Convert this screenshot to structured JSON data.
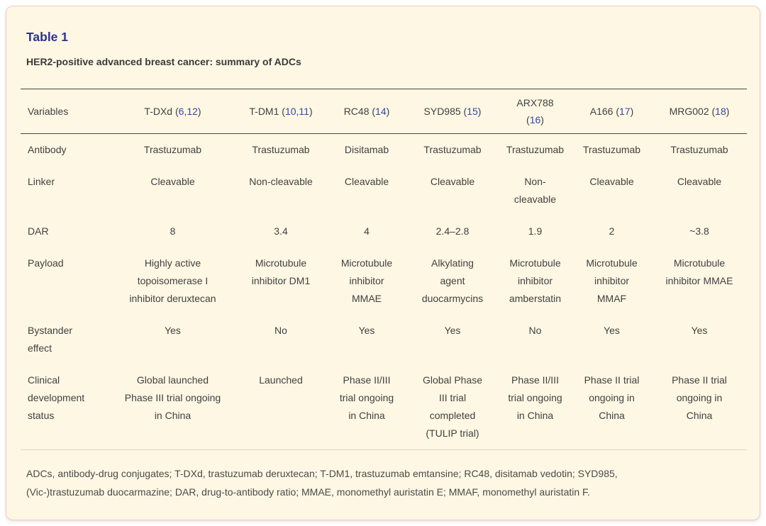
{
  "colors": {
    "card_background": "#fdf7e3",
    "card_border": "#f1ccc3",
    "title_accent": "#2e3192",
    "citation_link": "#3347a8",
    "body_text": "#414141",
    "rule_dark": "#454545",
    "rule_light": "#d9d4c5"
  },
  "title": "Table 1",
  "subtitle": "HER2-positive advanced breast cancer: summary of ADCs",
  "table": {
    "header": [
      {
        "parts": [
          {
            "text": "Variables",
            "style": "plain"
          }
        ]
      },
      {
        "parts": [
          {
            "text": "T-DXd (",
            "style": "plain"
          },
          {
            "text": "6,12",
            "style": "ref"
          },
          {
            "text": ")",
            "style": "plain"
          }
        ]
      },
      {
        "parts": [
          {
            "text": "T-DM1 (",
            "style": "plain"
          },
          {
            "text": "10,11",
            "style": "ref"
          },
          {
            "text": ")",
            "style": "plain"
          }
        ]
      },
      {
        "parts": [
          {
            "text": "RC48 (",
            "style": "plain"
          },
          {
            "text": "14",
            "style": "ref"
          },
          {
            "text": ")",
            "style": "plain"
          }
        ]
      },
      {
        "parts": [
          {
            "text": "SYD985 (",
            "style": "plain"
          },
          {
            "text": "15",
            "style": "ref"
          },
          {
            "text": ")",
            "style": "plain"
          }
        ]
      },
      {
        "parts": [
          {
            "text": "ARX788\n(",
            "style": "plain"
          },
          {
            "text": "16",
            "style": "ref"
          },
          {
            "text": ")",
            "style": "plain"
          }
        ]
      },
      {
        "parts": [
          {
            "text": "A166 (",
            "style": "plain"
          },
          {
            "text": "17",
            "style": "ref"
          },
          {
            "text": ")",
            "style": "plain"
          }
        ]
      },
      {
        "parts": [
          {
            "text": "MRG002 (",
            "style": "plain"
          },
          {
            "text": "18",
            "style": "ref"
          },
          {
            "text": ")",
            "style": "plain"
          }
        ]
      }
    ],
    "rows": [
      {
        "label": "Antibody",
        "cells": [
          "Trastuzumab",
          "Trastuzumab",
          "Disitamab",
          "Trastuzumab",
          "Trastuzumab",
          "Trastuzumab",
          "Trastuzumab"
        ]
      },
      {
        "label": "Linker",
        "cells": [
          "Cleavable",
          "Non-cleavable",
          "Cleavable",
          "Cleavable",
          "Non-\ncleavable",
          "Cleavable",
          "Cleavable"
        ]
      },
      {
        "label": "DAR",
        "cells": [
          "8",
          "3.4",
          "4",
          "2.4–2.8",
          "1.9",
          "2",
          "~3.8"
        ]
      },
      {
        "label": "Payload",
        "cells": [
          "Highly active\ntopoisomerase I\ninhibitor deruxtecan",
          "Microtubule\ninhibitor DM1",
          "Microtubule\ninhibitor\nMMAE",
          "Alkylating\nagent\nduocarmycins",
          "Microtubule\ninhibitor\namberstatin",
          "Microtubule\ninhibitor\nMMAF",
          "Microtubule\ninhibitor MMAE"
        ]
      },
      {
        "label": "Bystander\neffect",
        "cells": [
          "Yes",
          "No",
          "Yes",
          "Yes",
          "No",
          "Yes",
          "Yes"
        ]
      },
      {
        "label": "Clinical\ndevelopment\nstatus",
        "cells": [
          "Global launched\nPhase III trial ongoing\nin China",
          "Launched",
          "Phase II/III\ntrial ongoing\nin China",
          "Global Phase\nIII trial\ncompleted\n(TULIP trial)",
          "Phase II/III\ntrial ongoing\nin China",
          "Phase II trial\nongoing in\nChina",
          "Phase II trial\nongoing in\nChina"
        ]
      }
    ]
  },
  "footnote": "ADCs, antibody-drug conjugates; T-DXd, trastuzumab deruxtecan; T-DM1, trastuzumab emtansine; RC48, disitamab vedotin; SYD985,\n(Vic-)trastuzumab duocarmazine; DAR, drug-to-antibody ratio; MMAE, monomethyl auristatin E; MMAF, monomethyl auristatin F."
}
